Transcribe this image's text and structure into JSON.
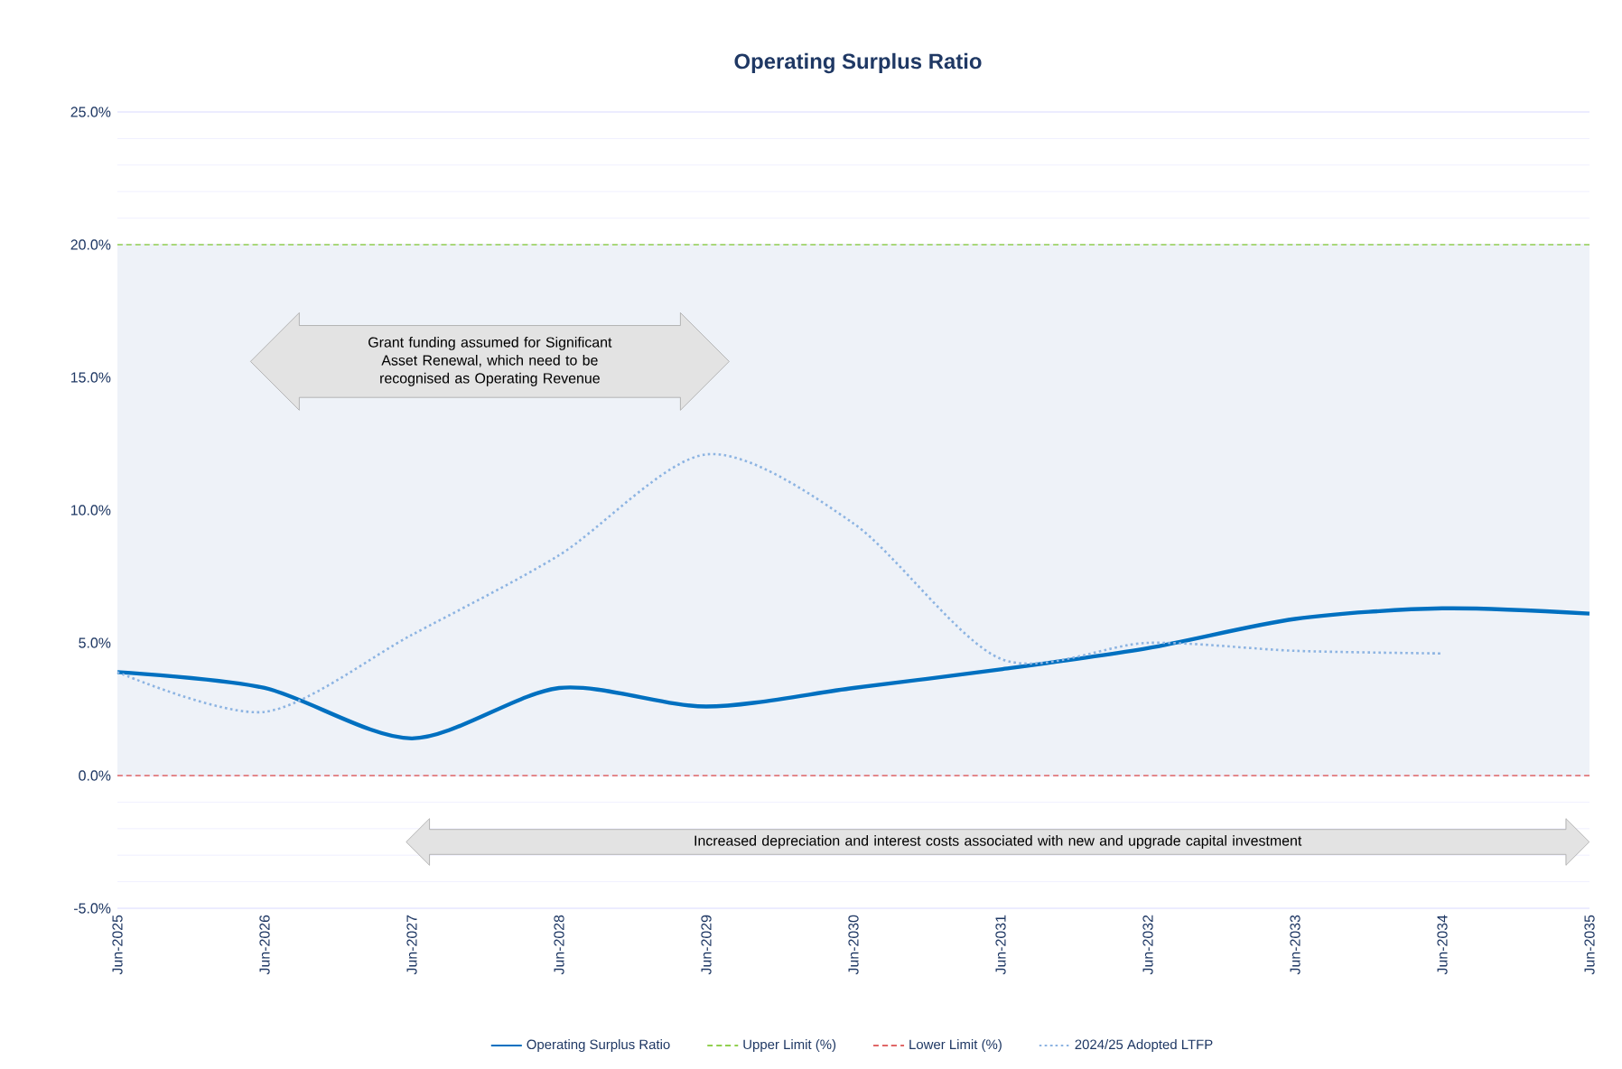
{
  "chart_data": {
    "type": "line",
    "title": "Operating Surplus Ratio",
    "categories": [
      "Jun-2025",
      "Jun-2026",
      "Jun-2027",
      "Jun-2028",
      "Jun-2029",
      "Jun-2030",
      "Jun-2031",
      "Jun-2032",
      "Jun-2033",
      "Jun-2034",
      "Jun-2035"
    ],
    "series": [
      {
        "name": "Operating Surplus Ratio",
        "color": "#0070c0",
        "line_style": "solid",
        "values": [
          3.9,
          3.3,
          1.4,
          3.3,
          2.6,
          3.3,
          4.0,
          4.8,
          5.9,
          6.3,
          6.1
        ]
      },
      {
        "name": "Upper Limit (%)",
        "color": "#92d050",
        "line_style": "dashed",
        "values": [
          20,
          20,
          20,
          20,
          20,
          20,
          20,
          20,
          20,
          20,
          20
        ]
      },
      {
        "name": "Lower Limit (%)",
        "color": "#e06666",
        "line_style": "dashed",
        "values": [
          0,
          0,
          0,
          0,
          0,
          0,
          0,
          0,
          0,
          0,
          0
        ]
      },
      {
        "name": "2024/25 Adopted LTFP",
        "color": "#8db4e2",
        "line_style": "dotted",
        "values": [
          3.9,
          2.4,
          5.3,
          8.3,
          12.1,
          9.5,
          4.4,
          5.0,
          4.7,
          4.6,
          null
        ]
      }
    ],
    "ylim": [
      -5,
      25
    ],
    "yticks": [
      {
        "value": -5,
        "label": "-5.0%"
      },
      {
        "value": 0,
        "label": "0.0%"
      },
      {
        "value": 5,
        "label": "5.0%"
      },
      {
        "value": 10,
        "label": "10.0%"
      },
      {
        "value": 15,
        "label": "15.0%"
      },
      {
        "value": 20,
        "label": "20.0%"
      },
      {
        "value": 25,
        "label": "25.0%"
      }
    ],
    "bands": [
      {
        "axis": "y",
        "from": 0,
        "to": 20,
        "color": "#eef2f8"
      }
    ],
    "grid": "y",
    "legend": "bottom",
    "annotations": [
      "Grant funding assumed for Significant Asset Renewal, which need to be recognised as Operating Revenue",
      "Increased depreciation and interest costs associated with new and upgrade capital investment"
    ]
  }
}
